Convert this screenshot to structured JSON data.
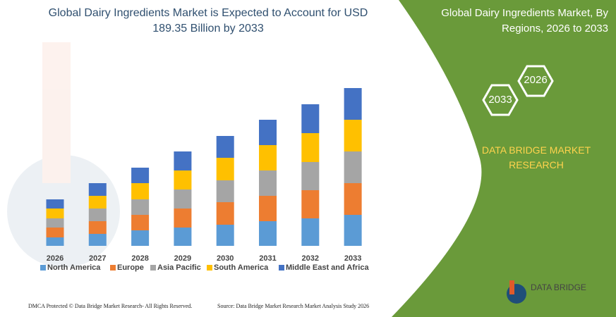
{
  "chart_data": {
    "type": "bar",
    "stacked": true,
    "title": "Global Dairy Ingredients Market is Expected to Account for USD 189.35 Billion by 2033",
    "categories": [
      "2026",
      "2027",
      "2028",
      "2029",
      "2030",
      "2031",
      "2032",
      "2033"
    ],
    "series": [
      {
        "name": "North America",
        "color": "#5b9bd5",
        "values": [
          12,
          17,
          22,
          26,
          30,
          35,
          39,
          44
        ]
      },
      {
        "name": "Europe",
        "color": "#ed7d31",
        "values": [
          14,
          18,
          22,
          27,
          32,
          36,
          40,
          45
        ]
      },
      {
        "name": "Asia Pacific",
        "color": "#a5a5a5",
        "values": [
          13,
          18,
          22,
          27,
          31,
          36,
          40,
          45
        ]
      },
      {
        "name": "South America",
        "color": "#ffc000",
        "values": [
          14,
          18,
          23,
          27,
          32,
          36,
          41,
          45
        ]
      },
      {
        "name": "Middle East and Africa",
        "color": "#4472c4",
        "values": [
          13,
          18,
          22,
          27,
          31,
          36,
          41,
          45
        ]
      }
    ]
  },
  "panel_title": "Global Dairy Ingredients Market, By Regions, 2026 to 2033",
  "hex_labels": [
    "2026",
    "2033"
  ],
  "brand": "DATA BRIDGE MARKET RESEARCH",
  "logo_text": "DATA BRIDGE",
  "footer": {
    "left": "DMCA Protected © Data Bridge Market Research-  All Rights Reserved.",
    "right": "Source: Data Bridge Market Research  Market Analysis Study 2026"
  }
}
